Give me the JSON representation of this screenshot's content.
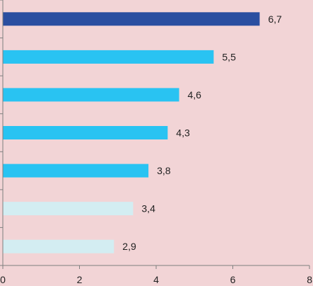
{
  "chart_data": {
    "type": "bar",
    "orientation": "horizontal",
    "title": "",
    "xlabel": "",
    "ylabel": "",
    "xlim": [
      0,
      8
    ],
    "x_ticks": [
      0,
      2,
      4,
      6,
      8
    ],
    "values": [
      6.7,
      5.5,
      4.6,
      4.3,
      3.8,
      3.4,
      2.9
    ],
    "value_labels": [
      "6,7",
      "5,5",
      "4,6",
      "4,3",
      "3,8",
      "3,4",
      "2,9"
    ],
    "bar_colors": [
      "#2a4ea0",
      "#29c3f2",
      "#29c3f2",
      "#29c3f2",
      "#29c3f2",
      "#d3edf2",
      "#d3edf2"
    ],
    "grid": false,
    "legend": "none",
    "background": "#f2d4d6",
    "axis_color": "#7f7f7f"
  }
}
